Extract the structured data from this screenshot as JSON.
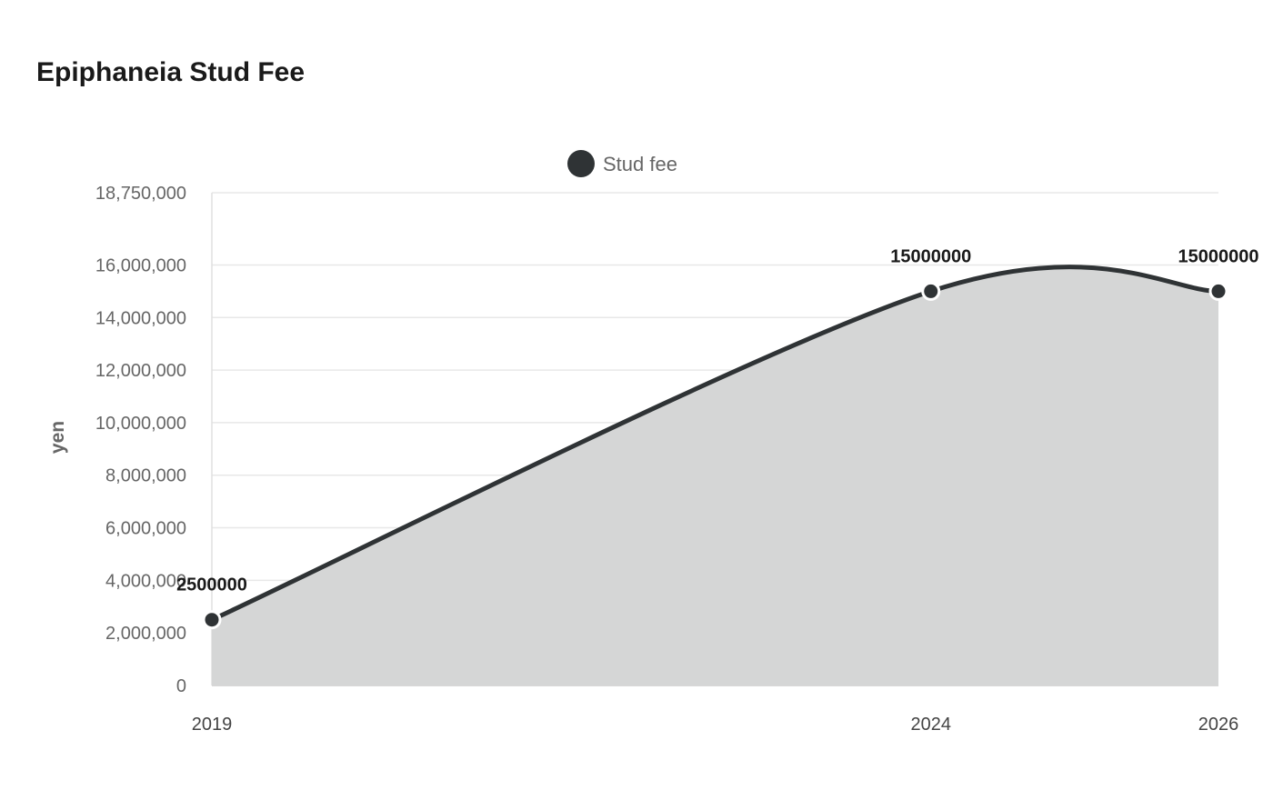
{
  "chart_data": {
    "type": "area",
    "title": "Epiphaneia Stud Fee",
    "xlabel": "",
    "ylabel": "yen",
    "x": [
      2019,
      2024,
      2026
    ],
    "series": [
      {
        "name": "Stud fee",
        "values": [
          2500000,
          15000000,
          15000000
        ],
        "color": "#2f3335",
        "fill": "#d5d6d6"
      }
    ],
    "ylim": [
      0,
      18750000
    ],
    "yticks": [
      0,
      2000000,
      4000000,
      6000000,
      8000000,
      10000000,
      12000000,
      14000000,
      16000000,
      18750000
    ],
    "ytick_labels": [
      "0",
      "2,000,000",
      "4,000,000",
      "6,000,000",
      "8,000,000",
      "10,000,000",
      "12,000,000",
      "14,000,000",
      "16,000,000",
      "18,750,000"
    ],
    "xtick_labels": [
      "2019",
      "2024",
      "2026"
    ],
    "data_labels": [
      "2500000",
      "15000000",
      "15000000"
    ],
    "grid": true,
    "legend": "top-center",
    "curve": "smooth"
  }
}
